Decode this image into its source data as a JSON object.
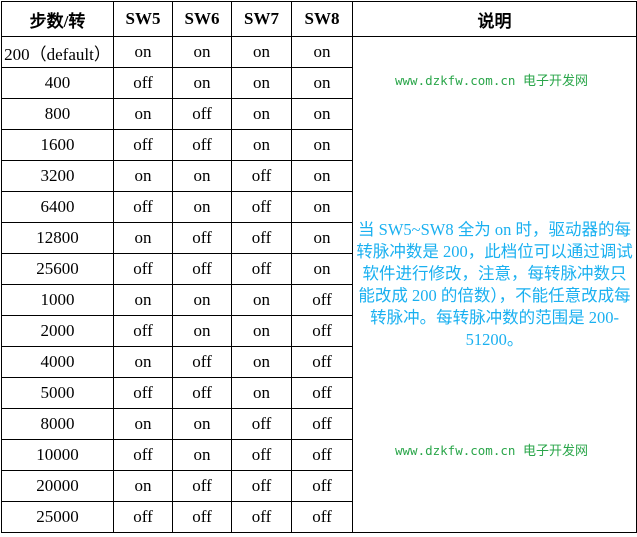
{
  "headers": [
    "步数/转",
    "SW5",
    "SW6",
    "SW7",
    "SW8",
    "说明"
  ],
  "rows": [
    [
      "200（default）",
      "on",
      "on",
      "on",
      "on"
    ],
    [
      "400",
      "off",
      "on",
      "on",
      "on"
    ],
    [
      "800",
      "on",
      "off",
      "on",
      "on"
    ],
    [
      "1600",
      "off",
      "off",
      "on",
      "on"
    ],
    [
      "3200",
      "on",
      "on",
      "off",
      "on"
    ],
    [
      "6400",
      "off",
      "on",
      "off",
      "on"
    ],
    [
      "12800",
      "on",
      "off",
      "off",
      "on"
    ],
    [
      "25600",
      "off",
      "off",
      "off",
      "on"
    ],
    [
      "1000",
      "on",
      "on",
      "on",
      "off"
    ],
    [
      "2000",
      "off",
      "on",
      "on",
      "off"
    ],
    [
      "4000",
      "on",
      "off",
      "on",
      "off"
    ],
    [
      "5000",
      "off",
      "off",
      "on",
      "off"
    ],
    [
      "8000",
      "on",
      "on",
      "off",
      "off"
    ],
    [
      "10000",
      "off",
      "on",
      "off",
      "off"
    ],
    [
      "20000",
      "on",
      "off",
      "off",
      "off"
    ],
    [
      "25000",
      "off",
      "off",
      "off",
      "off"
    ]
  ],
  "description": "当 SW5~SW8 全为 on 时，驱动器的每转脉冲数是 200，此档位可以通过调试软件进行修改，注意，每转脉冲数只能改成 200 的倍数），不能任意改成每转脉冲。每转脉冲数的范围是 200-51200。",
  "watermark": {
    "url": "www.dzkfw.com.cn",
    "name": "电子开发网"
  },
  "colors": {
    "description_text": "#1ab0f0",
    "watermark": "#2aa64a"
  }
}
